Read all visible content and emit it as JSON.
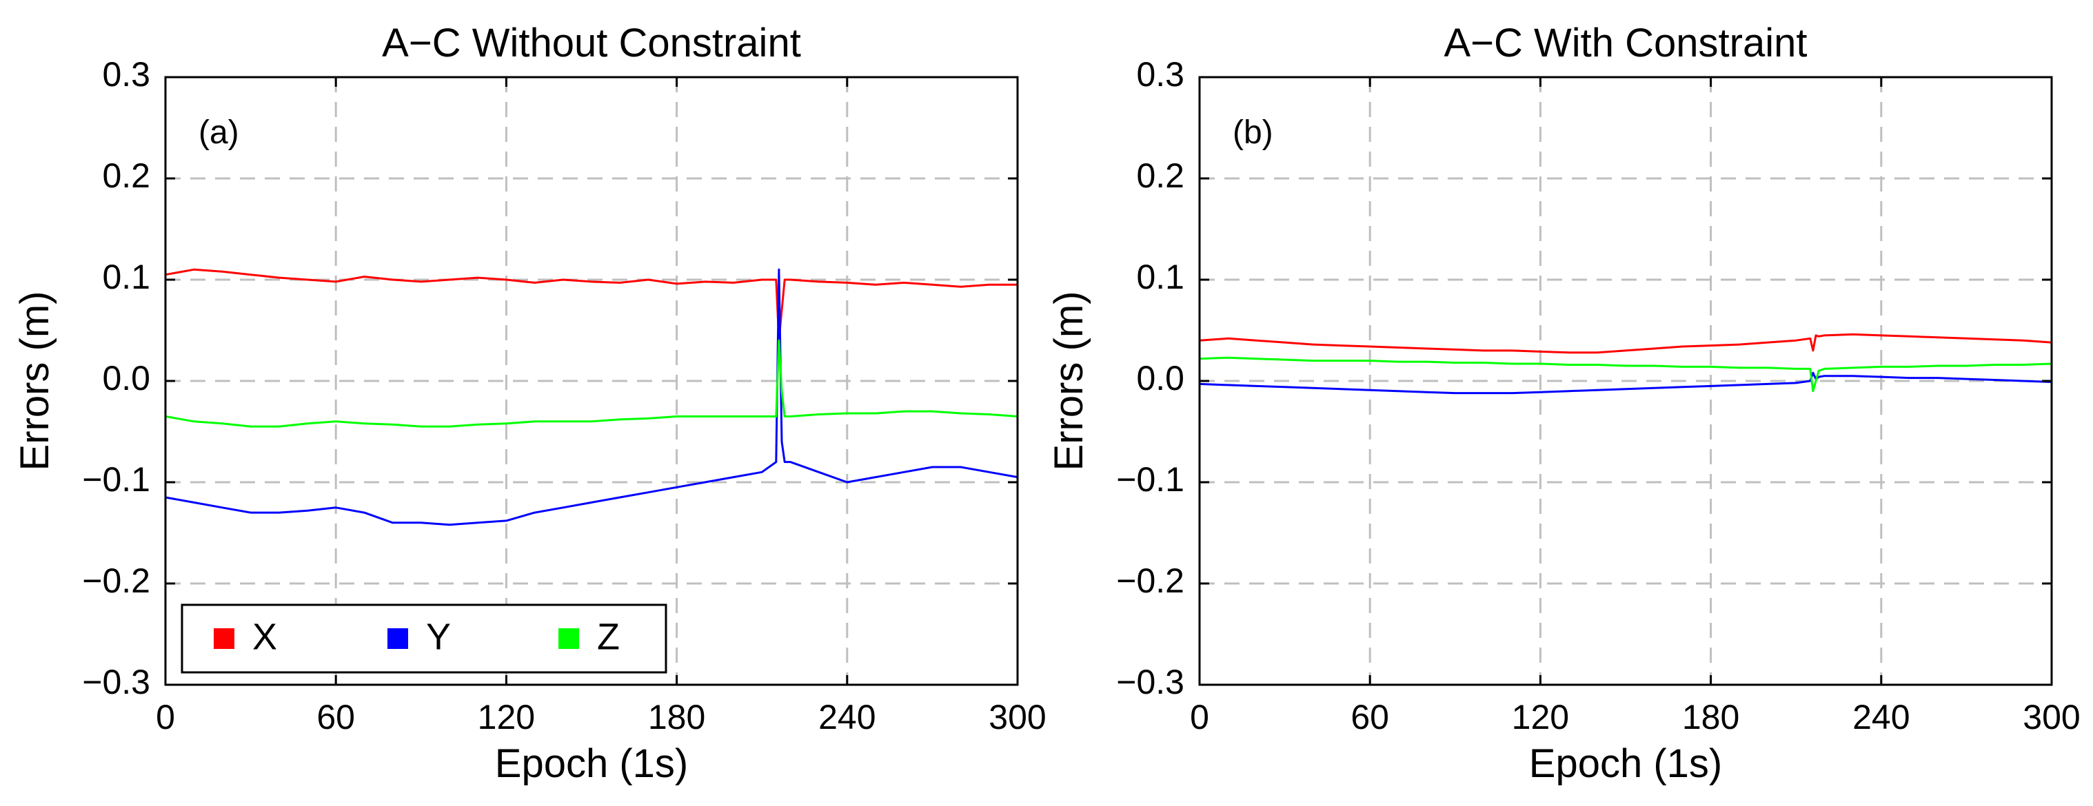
{
  "chart_data": [
    {
      "type": "line",
      "panel_letter": "(a)",
      "title": "A−C Without Constraint",
      "xlabel": "Epoch (1s)",
      "ylabel": "Errors (m)",
      "xlim": [
        0,
        300
      ],
      "ylim": [
        -0.3,
        0.3
      ],
      "xticks": [
        "0",
        "60",
        "120",
        "180",
        "240",
        "300"
      ],
      "yticks": [
        "0.3",
        "0.2",
        "0.1",
        "0.0",
        "−0.1",
        "−0.2",
        "−0.3"
      ],
      "grid": true,
      "legend": {
        "placement": "bottom-left",
        "entries": [
          "X",
          "Y",
          "Z"
        ]
      },
      "series": [
        {
          "name": "X",
          "color": "#ff0000",
          "x": [
            0,
            10,
            20,
            30,
            40,
            50,
            60,
            70,
            80,
            90,
            100,
            110,
            120,
            130,
            140,
            150,
            160,
            170,
            180,
            190,
            200,
            210,
            215,
            216,
            217,
            218,
            220,
            230,
            240,
            250,
            260,
            270,
            280,
            290,
            300
          ],
          "y": [
            0.105,
            0.11,
            0.108,
            0.105,
            0.102,
            0.1,
            0.098,
            0.103,
            0.1,
            0.098,
            0.1,
            0.102,
            0.1,
            0.097,
            0.1,
            0.098,
            0.097,
            0.1,
            0.096,
            0.098,
            0.097,
            0.1,
            0.1,
            0.04,
            0.07,
            0.1,
            0.1,
            0.098,
            0.097,
            0.095,
            0.097,
            0.095,
            0.093,
            0.095,
            0.095
          ]
        },
        {
          "name": "Y",
          "color": "#0000ff",
          "x": [
            0,
            10,
            20,
            30,
            40,
            50,
            60,
            70,
            80,
            90,
            100,
            110,
            120,
            130,
            140,
            150,
            160,
            170,
            180,
            190,
            200,
            210,
            215,
            216,
            217,
            218,
            220,
            230,
            240,
            250,
            260,
            270,
            280,
            290,
            300
          ],
          "y": [
            -0.115,
            -0.12,
            -0.125,
            -0.13,
            -0.13,
            -0.128,
            -0.125,
            -0.13,
            -0.14,
            -0.14,
            -0.142,
            -0.14,
            -0.138,
            -0.13,
            -0.125,
            -0.12,
            -0.115,
            -0.11,
            -0.105,
            -0.1,
            -0.095,
            -0.09,
            -0.08,
            0.11,
            -0.06,
            -0.08,
            -0.08,
            -0.09,
            -0.1,
            -0.095,
            -0.09,
            -0.085,
            -0.085,
            -0.09,
            -0.095
          ]
        },
        {
          "name": "Z",
          "color": "#00ff00",
          "x": [
            0,
            10,
            20,
            30,
            40,
            50,
            60,
            70,
            80,
            90,
            100,
            110,
            120,
            130,
            140,
            150,
            160,
            170,
            180,
            190,
            200,
            210,
            215,
            216,
            217,
            218,
            220,
            230,
            240,
            250,
            260,
            270,
            280,
            290,
            300
          ],
          "y": [
            -0.035,
            -0.04,
            -0.042,
            -0.045,
            -0.045,
            -0.042,
            -0.04,
            -0.042,
            -0.043,
            -0.045,
            -0.045,
            -0.043,
            -0.042,
            -0.04,
            -0.04,
            -0.04,
            -0.038,
            -0.037,
            -0.035,
            -0.035,
            -0.035,
            -0.035,
            -0.035,
            0.04,
            -0.01,
            -0.035,
            -0.035,
            -0.033,
            -0.032,
            -0.032,
            -0.03,
            -0.03,
            -0.032,
            -0.033,
            -0.035
          ]
        }
      ]
    },
    {
      "type": "line",
      "panel_letter": "(b)",
      "title": "A−C With Constraint",
      "xlabel": "Epoch (1s)",
      "ylabel": "Errors (m)",
      "xlim": [
        0,
        300
      ],
      "ylim": [
        -0.3,
        0.3
      ],
      "xticks": [
        "0",
        "60",
        "120",
        "180",
        "240",
        "300"
      ],
      "yticks": [
        "0.3",
        "0.2",
        "0.1",
        "0.0",
        "−0.1",
        "−0.2",
        "−0.3"
      ],
      "grid": true,
      "legend": null,
      "series": [
        {
          "name": "X",
          "color": "#ff0000",
          "x": [
            0,
            10,
            20,
            30,
            40,
            50,
            60,
            70,
            80,
            90,
            100,
            110,
            120,
            130,
            140,
            150,
            160,
            170,
            180,
            190,
            200,
            210,
            215,
            216,
            217,
            218,
            220,
            230,
            240,
            250,
            260,
            270,
            280,
            290,
            300
          ],
          "y": [
            0.04,
            0.042,
            0.04,
            0.038,
            0.036,
            0.035,
            0.034,
            0.033,
            0.032,
            0.031,
            0.03,
            0.03,
            0.029,
            0.028,
            0.028,
            0.03,
            0.032,
            0.034,
            0.035,
            0.036,
            0.038,
            0.04,
            0.042,
            0.03,
            0.045,
            0.044,
            0.045,
            0.046,
            0.045,
            0.044,
            0.043,
            0.042,
            0.041,
            0.04,
            0.038
          ]
        },
        {
          "name": "Y",
          "color": "#0000ff",
          "x": [
            0,
            10,
            20,
            30,
            40,
            50,
            60,
            70,
            80,
            90,
            100,
            110,
            120,
            130,
            140,
            150,
            160,
            170,
            180,
            190,
            200,
            210,
            215,
            216,
            217,
            218,
            220,
            230,
            240,
            250,
            260,
            270,
            280,
            290,
            300
          ],
          "y": [
            -0.003,
            -0.004,
            -0.005,
            -0.006,
            -0.007,
            -0.008,
            -0.009,
            -0.01,
            -0.011,
            -0.012,
            -0.012,
            -0.012,
            -0.011,
            -0.01,
            -0.009,
            -0.008,
            -0.007,
            -0.006,
            -0.005,
            -0.004,
            -0.003,
            -0.002,
            0.0,
            0.008,
            0.002,
            0.004,
            0.005,
            0.005,
            0.004,
            0.003,
            0.003,
            0.002,
            0.001,
            0.0,
            -0.001
          ]
        },
        {
          "name": "Z",
          "color": "#00ff00",
          "x": [
            0,
            10,
            20,
            30,
            40,
            50,
            60,
            70,
            80,
            90,
            100,
            110,
            120,
            130,
            140,
            150,
            160,
            170,
            180,
            190,
            200,
            210,
            215,
            216,
            217,
            218,
            220,
            230,
            240,
            250,
            260,
            270,
            280,
            290,
            300
          ],
          "y": [
            0.022,
            0.023,
            0.022,
            0.021,
            0.02,
            0.02,
            0.02,
            0.019,
            0.019,
            0.018,
            0.018,
            0.017,
            0.017,
            0.016,
            0.016,
            0.015,
            0.015,
            0.014,
            0.014,
            0.013,
            0.013,
            0.012,
            0.012,
            -0.01,
            0.0,
            0.01,
            0.012,
            0.013,
            0.014,
            0.014,
            0.015,
            0.015,
            0.016,
            0.016,
            0.017
          ]
        }
      ]
    }
  ]
}
